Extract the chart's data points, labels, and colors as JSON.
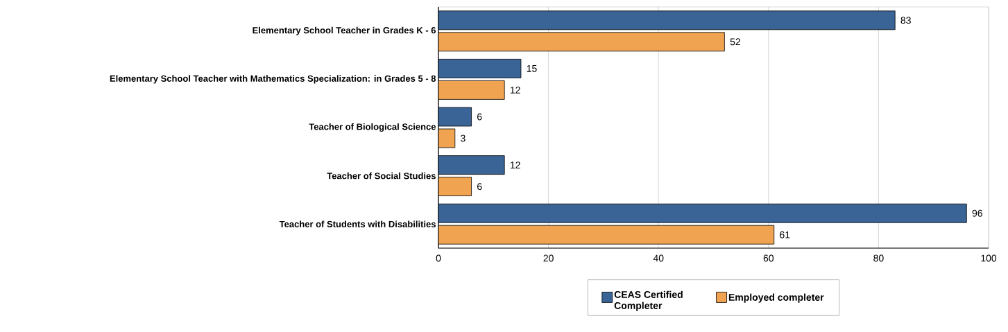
{
  "chart_data": {
    "type": "bar",
    "orientation": "horizontal",
    "categories": [
      "Elementary School Teacher in Grades K - 6",
      "Elementary School Teacher with Mathematics Specialization: in Grades 5 - 8",
      "Teacher of Biological Science",
      "Teacher of Social Studies",
      "Teacher of Students with Disabilities"
    ],
    "series": [
      {
        "name": "CEAS Certified Completer",
        "color": "#3a6495",
        "values": [
          83,
          15,
          6,
          12,
          96
        ]
      },
      {
        "name": "Employed completer",
        "color": "#f0a452",
        "values": [
          52,
          12,
          3,
          6,
          61
        ]
      }
    ],
    "xlim": [
      0,
      100
    ],
    "xticks": [
      0,
      20,
      40,
      60,
      80,
      100
    ],
    "grid": "x",
    "legend": "bottom",
    "data_labels": true
  }
}
